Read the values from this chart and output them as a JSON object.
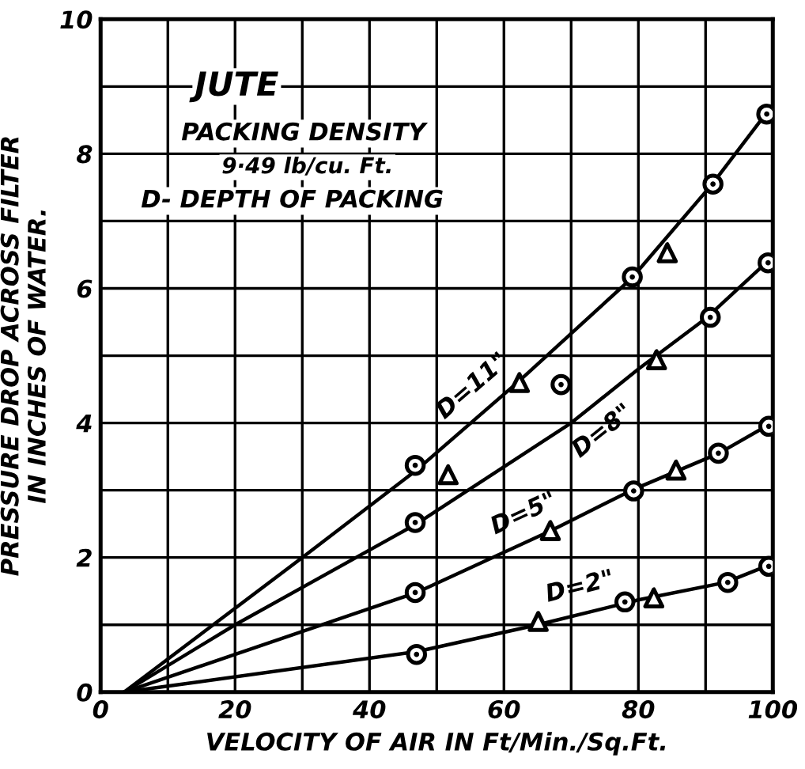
{
  "chart_data": {
    "type": "line",
    "xlabel": "VELOCITY OF AIR IN Ft/Min./Sq.Ft.",
    "ylabel": "PRESSURE DROP ACROSS FILTER\nIN INCHES OF WATER.",
    "annotations": [
      "JUTE",
      "PACKING DENSITY",
      "9·49 lb/cu. Ft.",
      "D- DEPTH OF PACKING"
    ],
    "series": [
      {
        "name": "D=11\"",
        "color": "#000000",
        "marker": "none",
        "x": [
          3.5,
          30,
          47,
          62,
          79,
          91,
          99
        ],
        "values": [
          0,
          2.0,
          3.3,
          4.6,
          6.15,
          7.55,
          8.6
        ]
      },
      {
        "name": "D=8\"",
        "color": "#000000",
        "marker": "none",
        "x": [
          3.5,
          20,
          47,
          70,
          80,
          90,
          99
        ],
        "values": [
          0,
          1.0,
          2.5,
          4.0,
          4.8,
          5.55,
          6.38
        ]
      },
      {
        "name": "D=5\"",
        "color": "#000000",
        "marker": "none",
        "x": [
          3.5,
          47,
          67,
          79,
          92,
          99
        ],
        "values": [
          0,
          1.48,
          2.4,
          3.0,
          3.55,
          3.95
        ]
      },
      {
        "name": "D=2\"",
        "color": "#000000",
        "marker": "none",
        "x": [
          3.5,
          47,
          65,
          80,
          93,
          99
        ],
        "values": [
          0,
          0.6,
          1.0,
          1.37,
          1.63,
          1.87
        ]
      },
      {
        "type": "scatter",
        "color": "#000000",
        "marker": "circle",
        "x": [
          46.8,
          79.1,
          91.1,
          99.1,
          68.5,
          46.8,
          90.7,
          99.3,
          46.8,
          79.3,
          91.9,
          99.4,
          47,
          78,
          93.3,
          99.4
        ],
        "values": [
          3.37,
          6.17,
          7.55,
          8.59,
          4.57,
          2.52,
          5.57,
          6.38,
          1.48,
          2.99,
          3.55,
          3.95,
          0.56,
          1.34,
          1.63,
          1.87
        ]
      },
      {
        "type": "scatter",
        "color": "#000000",
        "marker": "triangle",
        "x": [
          62.3,
          84.3,
          51.7,
          82.7,
          66.9,
          85.6,
          65.1,
          82.3
        ],
        "values": [
          4.6,
          6.53,
          3.23,
          4.94,
          2.4,
          3.3,
          1.05,
          1.4
        ]
      }
    ],
    "xlim": [
      0,
      100
    ],
    "ylim": [
      0,
      10
    ],
    "xticks": [
      0,
      {
        "value": 10,
        "label": null
      },
      20,
      {
        "value": 30,
        "label": null
      },
      40,
      {
        "value": 50,
        "label": null
      },
      60,
      {
        "value": 70,
        "label": null
      },
      80,
      {
        "value": 90,
        "label": null
      },
      100
    ],
    "yticks": [
      0,
      {
        "value": 1,
        "label": null
      },
      2,
      {
        "value": 3,
        "label": null
      },
      4,
      {
        "value": 5,
        "label": null
      },
      6,
      {
        "value": 7,
        "label": null
      },
      8,
      {
        "value": 9,
        "label": null
      },
      10
    ],
    "grid": true,
    "legend": false
  }
}
